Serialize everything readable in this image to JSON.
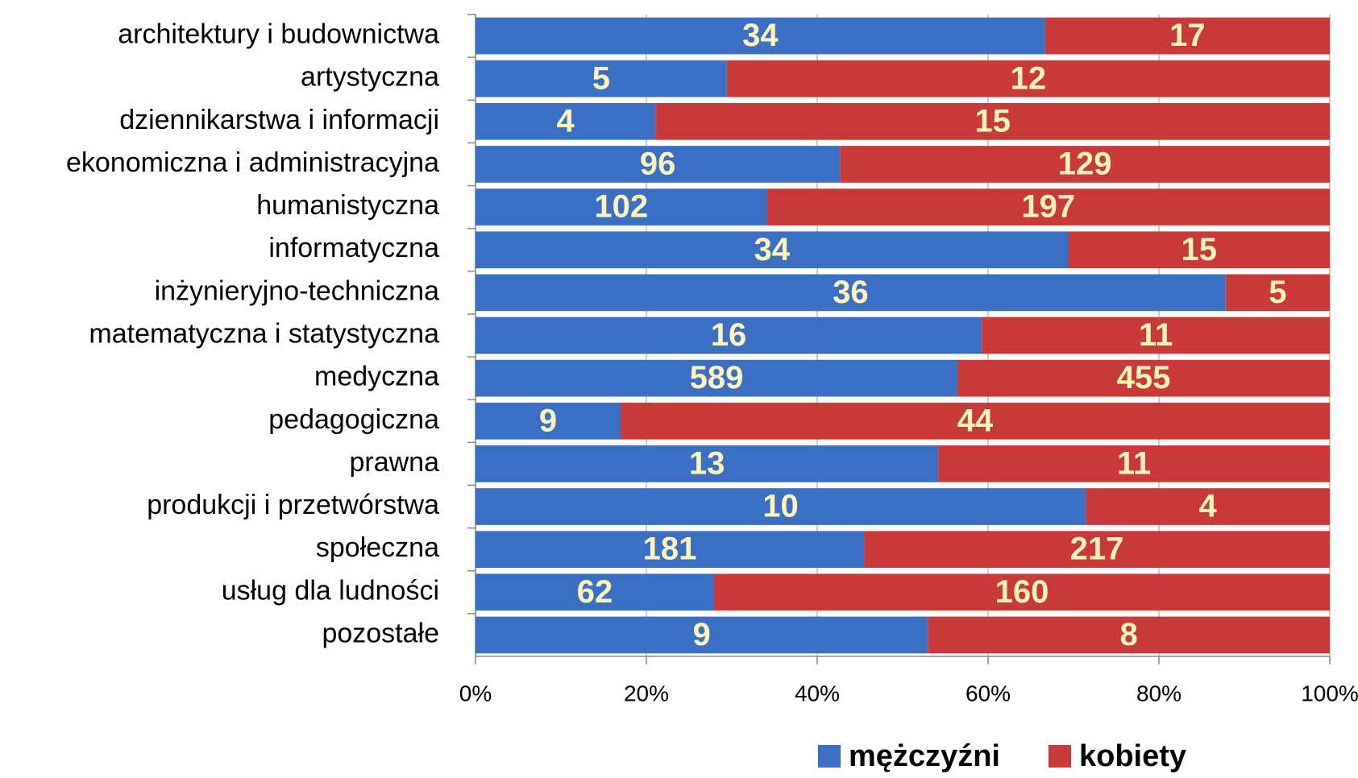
{
  "chart_data": {
    "type": "bar",
    "orientation": "horizontal",
    "stacked": "percent",
    "categories": [
      "architektury i budownictwa",
      "artystyczna",
      "dziennikarstwa i informacji",
      "ekonomiczna i administracyjna",
      "humanistyczna",
      "informatyczna",
      "inżynieryjno-techniczna",
      "matematyczna i statystyczna",
      "medyczna",
      "pedagogiczna",
      "prawna",
      "produkcji i przetwórstwa",
      "społeczna",
      "usług dla ludności",
      "pozostałe"
    ],
    "series": [
      {
        "name": "mężczyźni",
        "color": "#3a6fc4",
        "values": [
          34,
          5,
          4,
          96,
          102,
          34,
          36,
          16,
          589,
          9,
          13,
          10,
          181,
          62,
          9
        ]
      },
      {
        "name": "kobiety",
        "color": "#c83a3a",
        "values": [
          17,
          12,
          15,
          129,
          197,
          15,
          5,
          11,
          455,
          44,
          11,
          4,
          217,
          160,
          8
        ]
      }
    ],
    "xlim": [
      0,
      100
    ],
    "xticks": [
      {
        "value": 0,
        "label": "0%"
      },
      {
        "value": 20,
        "label": "20%"
      },
      {
        "value": 40,
        "label": "40%"
      },
      {
        "value": 60,
        "label": "60%"
      },
      {
        "value": 80,
        "label": "80%"
      },
      {
        "value": 100,
        "label": "100%"
      }
    ],
    "grid": true,
    "legend": "bottom"
  }
}
